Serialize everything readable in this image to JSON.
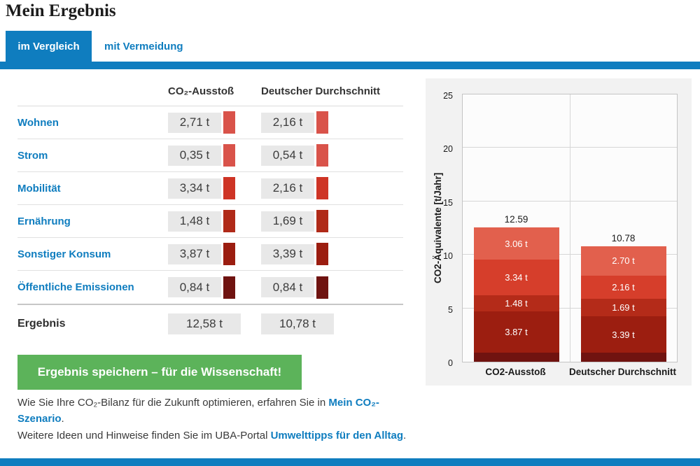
{
  "page_title": "Mein Ergebnis",
  "tabs": [
    {
      "label": "im Vergleich",
      "active": true
    },
    {
      "label": "mit Vermeidung",
      "active": false
    }
  ],
  "table": {
    "columns": [
      "CO₂-Ausstoß",
      "Deutscher Durchschnitt"
    ],
    "rows": [
      {
        "label": "Wohnen",
        "values": [
          "2,71 t",
          "2,16 t"
        ],
        "color": "#d9534a"
      },
      {
        "label": "Strom",
        "values": [
          "0,35 t",
          "0,54 t"
        ],
        "color": "#d9534a"
      },
      {
        "label": "Mobilität",
        "values": [
          "3,34 t",
          "2,16 t"
        ],
        "color": "#ce3425"
      },
      {
        "label": "Ernährung",
        "values": [
          "1,48 t",
          "1,69 t"
        ],
        "color": "#b02a18"
      },
      {
        "label": "Sonstiger Konsum",
        "values": [
          "3,87 t",
          "3,39 t"
        ],
        "color": "#9b1d10"
      },
      {
        "label": "Öffentliche Emissionen",
        "values": [
          "0,84 t",
          "0,84 t"
        ],
        "color": "#6f1310"
      }
    ],
    "result_row": {
      "label": "Ergebnis",
      "values": [
        "12,58 t",
        "10,78 t"
      ]
    }
  },
  "save_button_label": "Ergebnis speichern – für die Wissenschaft!",
  "footer": {
    "line1_text": "Wie Sie Ihre CO₂-Bilanz für die Zukunft optimieren, erfahren Sie in ",
    "line1_link": "Mein CO₂-Szenario",
    "line1_period": ".",
    "line2_text": "Weitere Ideen und Hinweise finden Sie im UBA-Portal ",
    "line2_link": "Umwelttipps für den Alltag",
    "line2_period": "."
  },
  "colors": {
    "accent_blue": "#0f7dbf",
    "button_green": "#5cb35a"
  },
  "chart_data": {
    "type": "bar",
    "stacked": true,
    "title": "",
    "xlabel": "",
    "ylabel": "CO2-Äquivalente [t/Jahr]",
    "ylim": [
      0,
      25
    ],
    "yticks": [
      0,
      5,
      10,
      15,
      20,
      25
    ],
    "grid": true,
    "legend": false,
    "categories": [
      "CO2-Ausstoß",
      "Deutscher Durchschnitt"
    ],
    "totals": [
      12.59,
      10.78
    ],
    "totals_labels": [
      "12.59",
      "10.78"
    ],
    "series_order": "top-to-bottom",
    "series": [
      {
        "name": "Wohnen + Strom",
        "color": "#e2604d",
        "values": [
          3.06,
          2.7
        ],
        "bar_labels": [
          "3.06 t",
          "2.70 t"
        ]
      },
      {
        "name": "Mobilität",
        "color": "#d63e2b",
        "values": [
          3.34,
          2.16
        ],
        "bar_labels": [
          "3.34 t",
          "2.16 t"
        ]
      },
      {
        "name": "Ernährung",
        "color": "#b42b19",
        "values": [
          1.48,
          1.69
        ],
        "bar_labels": [
          "1.48 t",
          "1.69 t"
        ]
      },
      {
        "name": "Sonstiger Konsum",
        "color": "#9c1e10",
        "values": [
          3.87,
          3.39
        ],
        "bar_labels": [
          "3.87 t",
          "3.39 t"
        ]
      },
      {
        "name": "Öffentliche Emissionen",
        "color": "#701310",
        "values": [
          0.84,
          0.84
        ],
        "bar_labels": [
          "",
          ""
        ]
      }
    ]
  }
}
